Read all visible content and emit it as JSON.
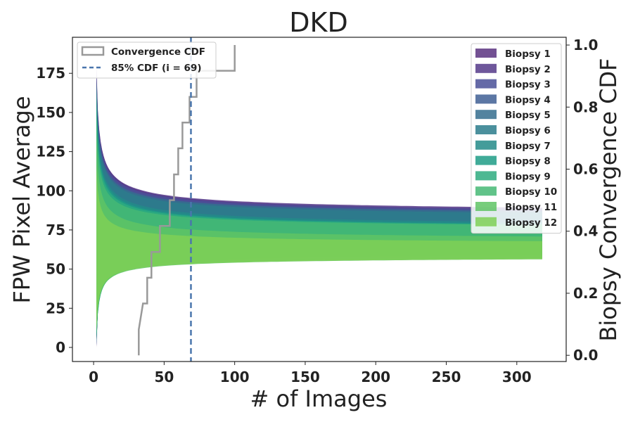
{
  "chart_data": {
    "type": "area",
    "title": "DKD",
    "xlabel": "# of Images",
    "ylabel": "FPW Pixel Average",
    "y2label": "Biopsy Convergence CDF",
    "xlim": [
      -15,
      335
    ],
    "ylim": [
      -9,
      198
    ],
    "y2lim": [
      -0.02,
      1.025
    ],
    "xticks": [
      0,
      50,
      100,
      150,
      200,
      250,
      300
    ],
    "yticks": [
      0,
      25,
      50,
      75,
      100,
      125,
      150,
      175
    ],
    "y2ticks": [
      0.0,
      0.2,
      0.4,
      0.6,
      0.8,
      1.0
    ],
    "y2tick_labels": [
      "0.0",
      "0.2",
      "0.4",
      "0.6",
      "0.8",
      "1.0"
    ],
    "grid": false,
    "legend_left": {
      "placement": "top-left",
      "entries": [
        {
          "label": "Convergence CDF",
          "style": "step",
          "color": "#999999"
        },
        {
          "label": "85% CDF (i = 69)",
          "style": "dashed",
          "color": "#4a76ad"
        }
      ]
    },
    "legend_right": {
      "placement": "top-right"
    },
    "cdf_line": {
      "name": "Convergence CDF",
      "color": "#999999",
      "steps": [
        {
          "x": 32,
          "y": 0.0
        },
        {
          "x": 32,
          "y": 0.083
        },
        {
          "x": 35,
          "y": 0.167
        },
        {
          "x": 38,
          "y": 0.167
        },
        {
          "x": 38,
          "y": 0.25
        },
        {
          "x": 41,
          "y": 0.25
        },
        {
          "x": 41,
          "y": 0.333
        },
        {
          "x": 47,
          "y": 0.333
        },
        {
          "x": 47,
          "y": 0.417
        },
        {
          "x": 54,
          "y": 0.417
        },
        {
          "x": 54,
          "y": 0.5
        },
        {
          "x": 57,
          "y": 0.5
        },
        {
          "x": 57,
          "y": 0.583
        },
        {
          "x": 60,
          "y": 0.583
        },
        {
          "x": 60,
          "y": 0.667
        },
        {
          "x": 63,
          "y": 0.667
        },
        {
          "x": 63,
          "y": 0.75
        },
        {
          "x": 68,
          "y": 0.75
        },
        {
          "x": 68,
          "y": 0.833
        },
        {
          "x": 73,
          "y": 0.833
        },
        {
          "x": 73,
          "y": 0.917
        },
        {
          "x": 100,
          "y": 0.917
        },
        {
          "x": 100,
          "y": 1.0
        }
      ]
    },
    "threshold_line": {
      "x": 69,
      "label": "85% CDF (i = 69)",
      "color": "#4a76ad"
    },
    "series": [
      {
        "name": "Biopsy 1",
        "color": "#5b3280",
        "mean": 82,
        "upper0": 180,
        "upper_inf": 83,
        "lower0": 0,
        "lower_inf": 81
      },
      {
        "name": "Biopsy 2",
        "color": "#553a8a",
        "mean": 80,
        "upper0": 178,
        "upper_inf": 84,
        "lower0": 1,
        "lower_inf": 76
      },
      {
        "name": "Biopsy 3",
        "color": "#4a5098",
        "mean": 80,
        "upper0": 176,
        "upper_inf": 83,
        "lower0": 1,
        "lower_inf": 77
      },
      {
        "name": "Biopsy 4",
        "color": "#3f5f94",
        "mean": 80,
        "upper0": 172,
        "upper_inf": 82,
        "lower0": 2,
        "lower_inf": 78
      },
      {
        "name": "Biopsy 5",
        "color": "#356d8e",
        "mean": 80,
        "upper0": 170,
        "upper_inf": 82,
        "lower0": 2,
        "lower_inf": 78
      },
      {
        "name": "Biopsy 6",
        "color": "#2b7d8c",
        "mean": 79,
        "upper0": 168,
        "upper_inf": 81,
        "lower0": 3,
        "lower_inf": 77
      },
      {
        "name": "Biopsy 7",
        "color": "#238b88",
        "mean": 72,
        "upper0": 164,
        "upper_inf": 75,
        "lower0": 4,
        "lower_inf": 64
      },
      {
        "name": "Biopsy 8",
        "color": "#1f9c86",
        "mean": 70,
        "upper0": 160,
        "upper_inf": 74,
        "lower0": 5,
        "lower_inf": 62
      },
      {
        "name": "Biopsy 9",
        "color": "#2eab7f",
        "mean": 70,
        "upper0": 155,
        "upper_inf": 74,
        "lower0": 6,
        "lower_inf": 63
      },
      {
        "name": "Biopsy 10",
        "color": "#45b974",
        "mean": 68,
        "upper0": 148,
        "upper_inf": 74,
        "lower0": 8,
        "lower_inf": 60
      },
      {
        "name": "Biopsy 11",
        "color": "#5fc465",
        "mean": 64,
        "upper0": 135,
        "upper_inf": 67,
        "lower0": 10,
        "lower_inf": 59
      },
      {
        "name": "Biopsy 12",
        "color": "#7fd056",
        "mean": 63,
        "upper0": 115,
        "upper_inf": 65,
        "lower0": 12,
        "lower_inf": 59
      }
    ]
  }
}
